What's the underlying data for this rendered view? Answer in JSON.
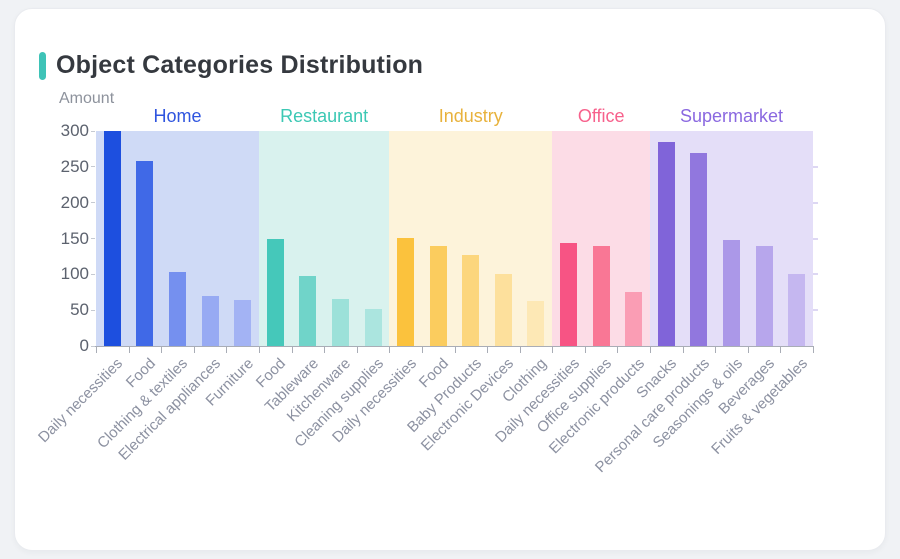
{
  "page_title": "Object Categories Distribution",
  "accent_color": "#3ec3b7",
  "chart_data": {
    "type": "bar",
    "title": "Object Categories Distribution",
    "ylabel": "Amount",
    "xlabel": "",
    "ylim": [
      0,
      300
    ],
    "y_ticks": [
      0,
      50,
      100,
      150,
      200,
      250,
      300
    ],
    "grid": false,
    "legend_position": "none",
    "group_header_row": true,
    "groups": [
      {
        "name": "Home",
        "label_color": "#2f55df",
        "band_color": "#cfdaf6",
        "bar_colors": [
          "#1d4fdf",
          "#4069e7",
          "#7590ef",
          "#97aaf3",
          "#a3b3f4"
        ],
        "categories": [
          "Daily necessities",
          "Food",
          "Clothing & textiles",
          "Electrical appliances",
          "Furniture"
        ],
        "values": [
          300,
          258,
          103,
          70,
          64
        ]
      },
      {
        "name": "Restaurant",
        "label_color": "#3cc8b4",
        "band_color": "#d9f2ee",
        "bar_colors": [
          "#45c8ba",
          "#70d4c9",
          "#9ce1d9",
          "#abe5df"
        ],
        "categories": [
          "Food",
          "Tableware",
          "Kitchenware",
          "Cleaning supplies"
        ],
        "values": [
          149,
          98,
          66,
          52
        ]
      },
      {
        "name": "Industry",
        "label_color": "#e8b23c",
        "band_color": "#fdf3da",
        "bar_colors": [
          "#fbc23d",
          "#fbcc5e",
          "#fcd67d",
          "#fde09c",
          "#fde8b5"
        ],
        "categories": [
          "Daily necessities",
          "Food",
          "Baby Products",
          "Electronic Devices",
          "Clothing"
        ],
        "values": [
          151,
          140,
          127,
          100,
          63
        ]
      },
      {
        "name": "Office",
        "label_color": "#f7618c",
        "band_color": "#fcdce6",
        "bar_colors": [
          "#f75484",
          "#f97795",
          "#fa9db4"
        ],
        "categories": [
          "Daily necessities",
          "Office supplies",
          "Electronic products"
        ],
        "values": [
          144,
          140,
          75
        ]
      },
      {
        "name": "Supermarket",
        "label_color": "#8a68e0",
        "band_color": "#e4def8",
        "bar_colors": [
          "#8064d9",
          "#9177de",
          "#ab98e8",
          "#b7a6ec",
          "#c5b7f0"
        ],
        "categories": [
          "Snacks",
          "Personal care products",
          "Seasonings & oils",
          "Beverages",
          "Fruits & vegetables"
        ],
        "values": [
          284,
          270,
          148,
          140,
          101
        ]
      }
    ]
  }
}
